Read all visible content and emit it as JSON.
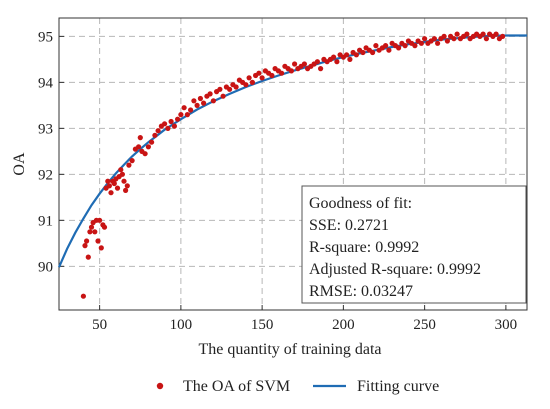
{
  "chart_data": {
    "type": "scatter",
    "title": "",
    "xlabel": "The quantity of training data",
    "ylabel": "OA",
    "xlim": [
      25,
      313
    ],
    "ylim": [
      89.05,
      95.4
    ],
    "xticks": [
      50,
      100,
      150,
      200,
      250,
      300
    ],
    "yticks": [
      90,
      91,
      92,
      93,
      94,
      95
    ],
    "grid": true,
    "grid_style": "dashed",
    "legend_placement": "bottom-center",
    "colors": {
      "scatter": "#c81414",
      "line": "#1f6cb4"
    },
    "series": [
      {
        "name": "The OA of SVM",
        "type": "scatter",
        "points": [
          [
            40,
            89.35
          ],
          [
            41,
            90.45
          ],
          [
            42,
            90.55
          ],
          [
            43,
            90.2
          ],
          [
            44,
            90.75
          ],
          [
            45,
            90.85
          ],
          [
            46,
            90.95
          ],
          [
            47,
            90.75
          ],
          [
            48,
            91.0
          ],
          [
            49,
            90.55
          ],
          [
            50,
            91.0
          ],
          [
            51,
            90.4
          ],
          [
            52,
            90.9
          ],
          [
            53,
            90.85
          ],
          [
            54,
            91.7
          ],
          [
            55,
            91.85
          ],
          [
            56,
            91.75
          ],
          [
            57,
            91.6
          ],
          [
            58,
            91.85
          ],
          [
            59,
            91.8
          ],
          [
            60,
            91.9
          ],
          [
            61,
            91.7
          ],
          [
            62,
            91.95
          ],
          [
            63,
            92.1
          ],
          [
            64,
            92.0
          ],
          [
            65,
            91.85
          ],
          [
            66,
            91.65
          ],
          [
            67,
            91.75
          ],
          [
            68,
            92.2
          ],
          [
            70,
            92.3
          ],
          [
            72,
            92.55
          ],
          [
            74,
            92.6
          ],
          [
            75,
            92.8
          ],
          [
            76,
            92.5
          ],
          [
            78,
            92.45
          ],
          [
            80,
            92.6
          ],
          [
            82,
            92.7
          ],
          [
            84,
            92.85
          ],
          [
            86,
            92.95
          ],
          [
            88,
            93.05
          ],
          [
            90,
            93.1
          ],
          [
            92,
            93.0
          ],
          [
            94,
            93.15
          ],
          [
            96,
            93.05
          ],
          [
            98,
            93.2
          ],
          [
            100,
            93.3
          ],
          [
            102,
            93.45
          ],
          [
            104,
            93.3
          ],
          [
            106,
            93.4
          ],
          [
            108,
            93.6
          ],
          [
            110,
            93.5
          ],
          [
            112,
            93.65
          ],
          [
            114,
            93.55
          ],
          [
            116,
            93.7
          ],
          [
            118,
            93.75
          ],
          [
            120,
            93.6
          ],
          [
            122,
            93.8
          ],
          [
            124,
            93.85
          ],
          [
            126,
            93.7
          ],
          [
            128,
            93.9
          ],
          [
            130,
            93.85
          ],
          [
            132,
            93.95
          ],
          [
            134,
            93.9
          ],
          [
            136,
            94.05
          ],
          [
            138,
            94.0
          ],
          [
            140,
            93.95
          ],
          [
            142,
            94.1
          ],
          [
            144,
            94.0
          ],
          [
            146,
            94.15
          ],
          [
            148,
            94.2
          ],
          [
            150,
            94.1
          ],
          [
            152,
            94.25
          ],
          [
            154,
            94.2
          ],
          [
            156,
            94.15
          ],
          [
            158,
            94.3
          ],
          [
            160,
            94.25
          ],
          [
            162,
            94.2
          ],
          [
            164,
            94.35
          ],
          [
            166,
            94.3
          ],
          [
            168,
            94.25
          ],
          [
            170,
            94.4
          ],
          [
            172,
            94.3
          ],
          [
            174,
            94.35
          ],
          [
            176,
            94.4
          ],
          [
            178,
            94.3
          ],
          [
            180,
            94.35
          ],
          [
            182,
            94.4
          ],
          [
            184,
            94.45
          ],
          [
            186,
            94.3
          ],
          [
            188,
            94.5
          ],
          [
            190,
            94.45
          ],
          [
            192,
            94.5
          ],
          [
            194,
            94.55
          ],
          [
            196,
            94.45
          ],
          [
            198,
            94.6
          ],
          [
            200,
            94.55
          ],
          [
            202,
            94.6
          ],
          [
            204,
            94.5
          ],
          [
            206,
            94.65
          ],
          [
            208,
            94.6
          ],
          [
            210,
            94.7
          ],
          [
            212,
            94.65
          ],
          [
            214,
            94.75
          ],
          [
            216,
            94.7
          ],
          [
            218,
            94.65
          ],
          [
            220,
            94.8
          ],
          [
            222,
            94.7
          ],
          [
            224,
            94.75
          ],
          [
            226,
            94.8
          ],
          [
            228,
            94.7
          ],
          [
            230,
            94.85
          ],
          [
            232,
            94.8
          ],
          [
            234,
            94.75
          ],
          [
            236,
            94.85
          ],
          [
            238,
            94.8
          ],
          [
            240,
            94.9
          ],
          [
            242,
            94.85
          ],
          [
            244,
            94.8
          ],
          [
            246,
            94.9
          ],
          [
            248,
            94.85
          ],
          [
            250,
            94.95
          ],
          [
            252,
            94.85
          ],
          [
            254,
            94.9
          ],
          [
            256,
            94.95
          ],
          [
            258,
            94.85
          ],
          [
            260,
            94.95
          ],
          [
            262,
            95.0
          ],
          [
            264,
            94.9
          ],
          [
            266,
            95.0
          ],
          [
            268,
            94.95
          ],
          [
            270,
            95.05
          ],
          [
            272,
            94.95
          ],
          [
            274,
            95.0
          ],
          [
            276,
            95.05
          ],
          [
            278,
            94.95
          ],
          [
            280,
            95.0
          ],
          [
            282,
            95.05
          ],
          [
            284,
            95.0
          ],
          [
            286,
            95.05
          ],
          [
            288,
            94.95
          ],
          [
            290,
            95.05
          ],
          [
            292,
            95.0
          ],
          [
            294,
            95.05
          ],
          [
            296,
            94.95
          ],
          [
            298,
            95.0
          ]
        ]
      },
      {
        "name": "Fitting curve",
        "type": "line",
        "points": [
          [
            25,
            89.98
          ],
          [
            30,
            90.38
          ],
          [
            35,
            90.73
          ],
          [
            40,
            91.04
          ],
          [
            45,
            91.33
          ],
          [
            50,
            91.58
          ],
          [
            55,
            91.81
          ],
          [
            60,
            92.02
          ],
          [
            65,
            92.21
          ],
          [
            70,
            92.39
          ],
          [
            75,
            92.55
          ],
          [
            80,
            92.7
          ],
          [
            90,
            92.97
          ],
          [
            100,
            93.2
          ],
          [
            110,
            93.41
          ],
          [
            120,
            93.59
          ],
          [
            130,
            93.75
          ],
          [
            140,
            93.9
          ],
          [
            150,
            94.03
          ],
          [
            160,
            94.15
          ],
          [
            170,
            94.26
          ],
          [
            180,
            94.36
          ],
          [
            190,
            94.46
          ],
          [
            200,
            94.55
          ],
          [
            210,
            94.63
          ],
          [
            220,
            94.7
          ],
          [
            230,
            94.77
          ],
          [
            240,
            94.83
          ],
          [
            250,
            94.88
          ],
          [
            260,
            94.93
          ],
          [
            270,
            94.96
          ],
          [
            280,
            94.99
          ],
          [
            290,
            95.01
          ],
          [
            300,
            95.02
          ],
          [
            313,
            95.02
          ]
        ]
      }
    ],
    "annotation": {
      "title": "Goodness of fit:",
      "lines": [
        "SSE: 0.2721",
        "R-square: 0.9992",
        "Adjusted R-square: 0.9992",
        "RMSE: 0.03247"
      ]
    }
  }
}
